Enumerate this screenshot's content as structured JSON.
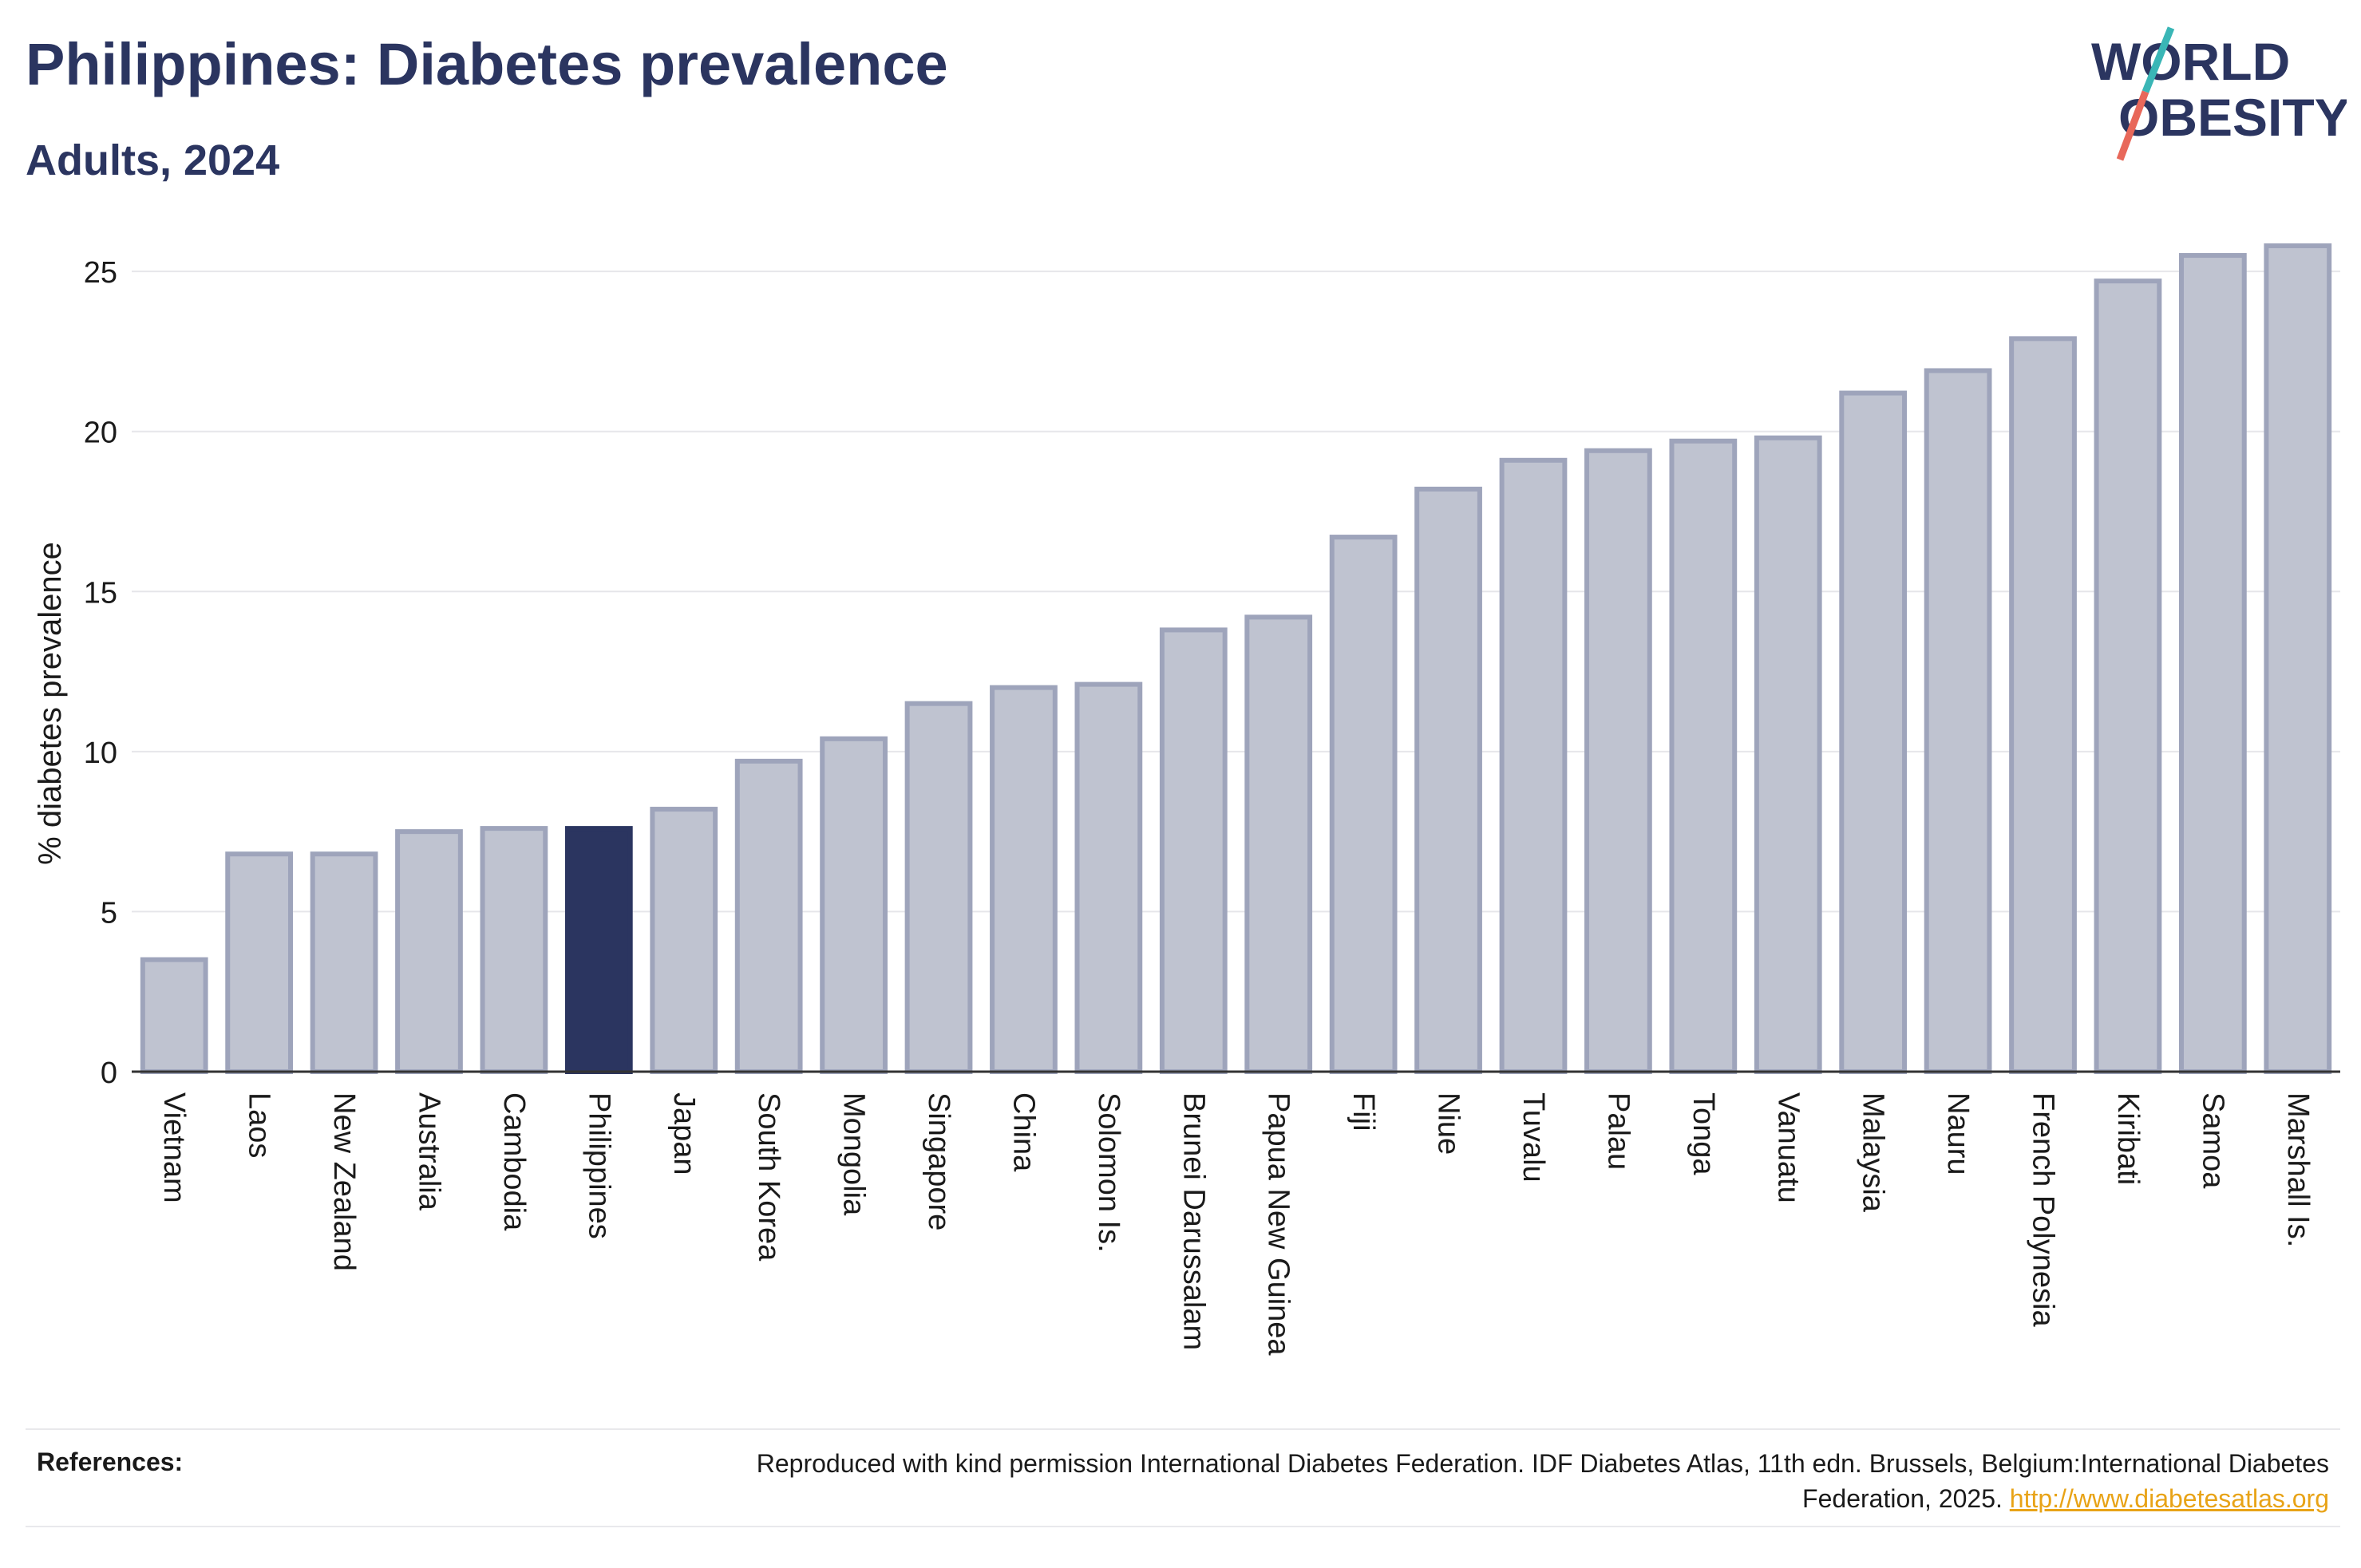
{
  "header": {
    "title": "Philippines: Diabetes prevalence",
    "subtitle": "Adults, 2024"
  },
  "logo": {
    "line1": "WORLD",
    "line2": "OBESITY",
    "accent_teal": "#3ab6b6",
    "accent_red": "#e8685a"
  },
  "chart_data": {
    "type": "bar",
    "title": "Philippines: Diabetes prevalence",
    "subtitle": "Adults, 2024",
    "xlabel": "",
    "ylabel": "% diabetes prevalence",
    "ylim": [
      0,
      26
    ],
    "yticks": [
      0,
      5,
      10,
      15,
      20,
      25
    ],
    "grid": true,
    "highlight": "Philippines",
    "colors": {
      "bar": "#bfc3d0",
      "bar_edge": "#9ea4bb",
      "highlight": "#2b3560",
      "grid": "#e6e6ea",
      "axis": "#333333"
    },
    "categories": [
      "Vietnam",
      "Laos",
      "New Zealand",
      "Australia",
      "Cambodia",
      "Philippines",
      "Japan",
      "South Korea",
      "Mongolia",
      "Singapore",
      "China",
      "Solomon Is.",
      "Brunei Darussalam",
      "Papua New Guinea",
      "Fiji",
      "Niue",
      "Tuvalu",
      "Palau",
      "Tonga",
      "Vanuatu",
      "Malaysia",
      "Nauru",
      "French Polynesia",
      "Kiribati",
      "Samoa",
      "Marshall Is."
    ],
    "values": [
      3.5,
      6.8,
      6.8,
      7.5,
      7.6,
      7.6,
      8.2,
      9.7,
      10.4,
      11.5,
      12.0,
      12.1,
      13.8,
      14.2,
      16.7,
      18.2,
      19.1,
      19.4,
      19.7,
      19.8,
      21.2,
      21.9,
      22.9,
      24.7,
      25.5,
      25.8
    ]
  },
  "references": {
    "label": "References:",
    "text": "Reproduced with kind permission International Diabetes Federation. IDF Diabetes Atlas, 11th edn. Brussels, Belgium:International Diabetes Federation, 2025.",
    "link": "http://www.diabetesatlas.org"
  }
}
